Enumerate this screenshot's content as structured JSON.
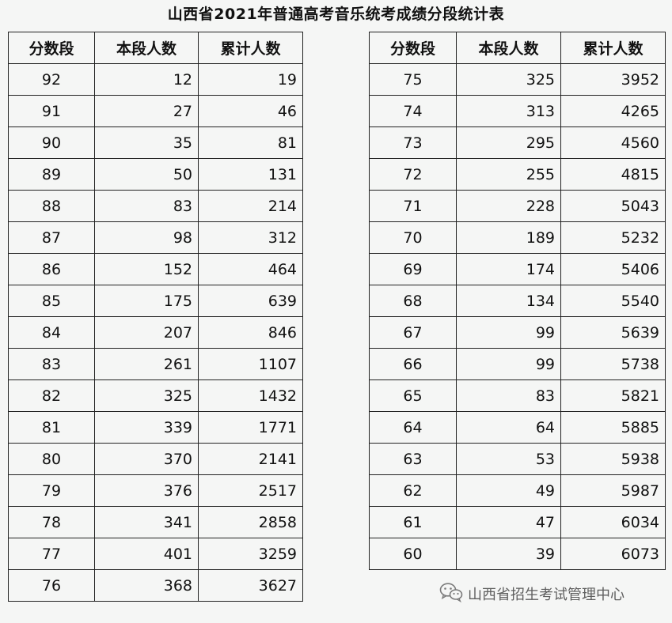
{
  "title": "山西省2021年普通高考音乐统考成绩分段统计表",
  "headers": [
    "分数段",
    "本段人数",
    "累计人数"
  ],
  "left_rows": [
    [
      "92",
      "12",
      "19"
    ],
    [
      "91",
      "27",
      "46"
    ],
    [
      "90",
      "35",
      "81"
    ],
    [
      "89",
      "50",
      "131"
    ],
    [
      "88",
      "83",
      "214"
    ],
    [
      "87",
      "98",
      "312"
    ],
    [
      "86",
      "152",
      "464"
    ],
    [
      "85",
      "175",
      "639"
    ],
    [
      "84",
      "207",
      "846"
    ],
    [
      "83",
      "261",
      "1107"
    ],
    [
      "82",
      "325",
      "1432"
    ],
    [
      "81",
      "339",
      "1771"
    ],
    [
      "80",
      "370",
      "2141"
    ],
    [
      "79",
      "376",
      "2517"
    ],
    [
      "78",
      "341",
      "2858"
    ],
    [
      "77",
      "401",
      "3259"
    ],
    [
      "76",
      "368",
      "3627"
    ]
  ],
  "right_rows": [
    [
      "75",
      "325",
      "3952"
    ],
    [
      "74",
      "313",
      "4265"
    ],
    [
      "73",
      "295",
      "4560"
    ],
    [
      "72",
      "255",
      "4815"
    ],
    [
      "71",
      "228",
      "5043"
    ],
    [
      "70",
      "189",
      "5232"
    ],
    [
      "69",
      "174",
      "5406"
    ],
    [
      "68",
      "134",
      "5540"
    ],
    [
      "67",
      "99",
      "5639"
    ],
    [
      "66",
      "99",
      "5738"
    ],
    [
      "65",
      "83",
      "5821"
    ],
    [
      "64",
      "64",
      "5885"
    ],
    [
      "63",
      "53",
      "5938"
    ],
    [
      "62",
      "49",
      "5987"
    ],
    [
      "61",
      "47",
      "6034"
    ],
    [
      "60",
      "39",
      "6073"
    ]
  ],
  "watermark": {
    "icon": "wechat-icon",
    "text": "山西省招生考试管理中心"
  }
}
